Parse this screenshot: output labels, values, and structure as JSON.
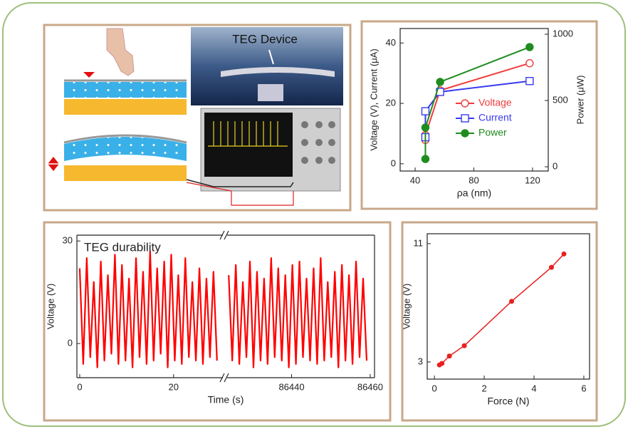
{
  "schematic": {
    "label": "TEG Device"
  },
  "chart_data": [
    {
      "type": "line",
      "x_label": "ρa (nm)",
      "y_label": "Voltage (V), Current (μA)",
      "y2_label": "Power (μW)",
      "x": [
        47,
        47,
        57,
        118
      ],
      "xlim": [
        29.8,
        130.7
      ],
      "xticks": [
        40,
        80,
        120
      ],
      "ylim": [
        -2.4,
        44.8
      ],
      "yticks": [
        0,
        20,
        40
      ],
      "y2lim": [
        -32,
        1043
      ],
      "y2ticks": [
        0,
        500,
        1000
      ],
      "legend": "center-right",
      "series": [
        {
          "name": "Voltage",
          "color": "#f03c3c",
          "marker": "open-circle",
          "values": [
            7.9,
            9.5,
            24.3,
            33.3
          ]
        },
        {
          "name": "Current",
          "color": "#3a3af0",
          "marker": "open-square",
          "values": [
            8.8,
            17.4,
            23.8,
            27.4
          ]
        },
        {
          "name": "Power",
          "color": "#1e8c1e",
          "marker": "filled-circle",
          "axis": "y2",
          "values": [
            59,
            296,
            640,
            903
          ]
        }
      ]
    },
    {
      "type": "line",
      "title": "TEG durability",
      "x_label": "Time (s)",
      "y_label": "Voltage (V)",
      "ylim": [
        -10,
        31.7
      ],
      "yticks": [
        0,
        30
      ],
      "color": "#ff0000",
      "segments": [
        {
          "xlim": [
            -0.6,
            30.5
          ],
          "xticks": [
            0,
            20
          ],
          "x": [
            0,
            0.75,
            1.5,
            2.25,
            3,
            3.75,
            4.5,
            5.25,
            6,
            6.75,
            7.5,
            8.25,
            9,
            9.75,
            10.5,
            11.25,
            12,
            12.75,
            13.5,
            14.25,
            15,
            15.75,
            16.5,
            17.25,
            18,
            18.75,
            19.5,
            20.25,
            21,
            21.75,
            22.5,
            23.25,
            24,
            24.75,
            25.5,
            26.25,
            27,
            27.75,
            28.5,
            29.25
          ],
          "values": [
            22,
            -6,
            25,
            -4,
            18,
            -7,
            24,
            -5,
            20,
            -3,
            26,
            -6,
            23,
            -5,
            19,
            -7,
            25,
            -4,
            21,
            -6,
            27,
            -5,
            22,
            -3,
            24,
            -7,
            26,
            -5,
            20,
            -6,
            25,
            -4,
            18,
            -5,
            22,
            -6,
            19,
            -4,
            21,
            -5
          ]
        },
        {
          "xlim": [
            86423.6,
            86461.1
          ],
          "xticks": [
            86440,
            86460
          ],
          "x": [
            86424,
            86424.9,
            86425.8,
            86426.7,
            86427.6,
            86428.5,
            86429.4,
            86430.3,
            86431.2,
            86432.1,
            86433,
            86433.9,
            86434.8,
            86435.7,
            86436.6,
            86437.5,
            86438.4,
            86439.3,
            86440.2,
            86441.1,
            86442,
            86442.9,
            86443.8,
            86444.7,
            86445.6,
            86446.5,
            86447.4,
            86448.3,
            86449.2,
            86450.1,
            86451,
            86451.9,
            86452.8,
            86453.7,
            86454.6,
            86455.5,
            86456.4,
            86457.3,
            86458.2,
            86459.1
          ],
          "values": [
            20,
            -5,
            23,
            -6,
            18,
            -4,
            24,
            -7,
            21,
            -5,
            19,
            -6,
            25,
            -4,
            22,
            -5,
            20,
            -7,
            23,
            -6,
            24,
            -4,
            19,
            -5,
            22,
            -6,
            25,
            -5,
            18,
            -4,
            21,
            -7,
            23,
            -5,
            20,
            -6,
            24,
            -4,
            19,
            -5
          ]
        }
      ]
    },
    {
      "type": "scatter",
      "x_label": "Force (N)",
      "y_label": "Voltage (V)",
      "xlim": [
        -0.29,
        6.23
      ],
      "xticks": [
        0,
        2,
        4,
        6
      ],
      "ylim": [
        1.84,
        11.67
      ],
      "yticks": [
        3,
        11
      ],
      "color": "#e82020",
      "line": true,
      "x": [
        0.2,
        0.3,
        0.6,
        1.2,
        3.1,
        4.7,
        5.2
      ],
      "values": [
        2.8,
        2.9,
        3.4,
        4.1,
        7.1,
        9.4,
        10.3
      ]
    }
  ]
}
